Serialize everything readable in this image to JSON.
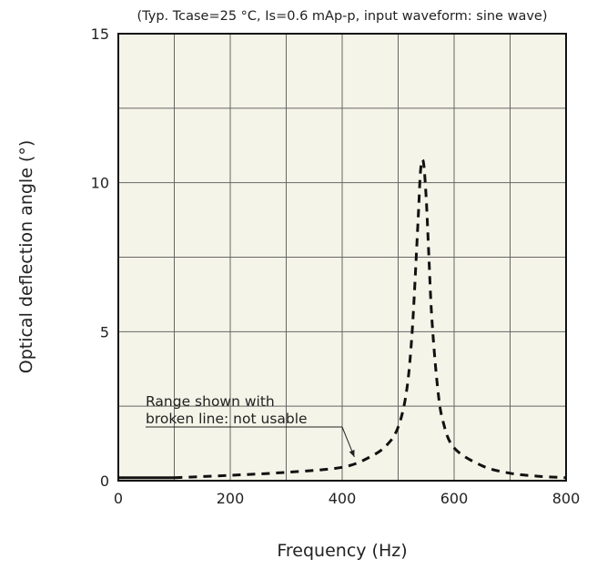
{
  "chart_data": {
    "type": "line",
    "title": "",
    "subtitle": "(Typ. Tcase=25 °C, Is=0.6 mAp-p, input waveform: sine wave)",
    "xlabel": "Frequency (Hz)",
    "ylabel": "Optical deflection angle (°)",
    "xlim": [
      0,
      800
    ],
    "ylim": [
      0,
      15
    ],
    "xticks": [
      0,
      200,
      400,
      600,
      800
    ],
    "yticks": [
      0,
      5,
      10,
      15
    ],
    "xtick_labels": [
      "0",
      "200",
      "400",
      "600",
      "800"
    ],
    "ytick_labels": [
      "0",
      "5",
      "10",
      "15"
    ],
    "grid": true,
    "grid_x_step": 100,
    "grid_y_step": 2.5,
    "background_color": "#f5f4e8",
    "line_color": "#111111",
    "series": [
      {
        "style": "solid",
        "x": [
          0,
          100
        ],
        "y": [
          0.1,
          0.1
        ]
      },
      {
        "style": "dashed",
        "x": [
          100,
          200,
          300,
          400,
          450,
          480,
          500,
          515,
          525,
          535,
          540,
          545,
          550,
          555,
          560,
          570,
          580,
          600,
          650,
          700,
          750,
          800
        ],
        "y": [
          0.1,
          0.18,
          0.28,
          0.45,
          0.8,
          1.2,
          1.8,
          3.0,
          5.0,
          8.5,
          10.4,
          10.7,
          9.5,
          7.5,
          5.5,
          3.2,
          2.0,
          1.1,
          0.5,
          0.25,
          0.15,
          0.1
        ]
      }
    ],
    "annotations": [
      {
        "lines": [
          "Range shown with",
          "broken line: not usable"
        ],
        "target": [
          425,
          0.55
        ]
      }
    ]
  }
}
